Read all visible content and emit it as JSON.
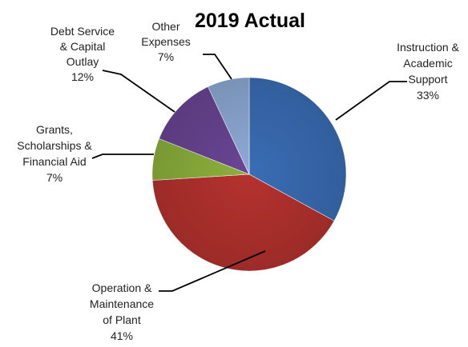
{
  "chart_data": {
    "type": "pie",
    "title": "2019 Actual",
    "start_angle_deg": 0,
    "direction": "clockwise",
    "legend": "none",
    "slices": [
      {
        "key": "instruction",
        "label_lines": [
          "Instruction &",
          "Academic",
          "Support"
        ],
        "value_label": "33%",
        "value": 33,
        "color": "#3a6db5"
      },
      {
        "key": "operation",
        "label_lines": [
          "Operation &",
          "Maintenance",
          "of Plant"
        ],
        "value_label": "41%",
        "value": 41,
        "color": "#b5322e"
      },
      {
        "key": "grants",
        "label_lines": [
          "Grants,",
          "Scholarships &",
          "Financial Aid"
        ],
        "value_label": "7%",
        "value": 7,
        "color": "#8cb13c"
      },
      {
        "key": "debt",
        "label_lines": [
          "Debt Service",
          "& Capital",
          "Outlay"
        ],
        "value_label": "12%",
        "value": 12,
        "color": "#6a4594"
      },
      {
        "key": "other",
        "label_lines": [
          "Other",
          "Expenses"
        ],
        "value_label": "7%",
        "value": 7,
        "color": "#8eaad6"
      }
    ]
  }
}
